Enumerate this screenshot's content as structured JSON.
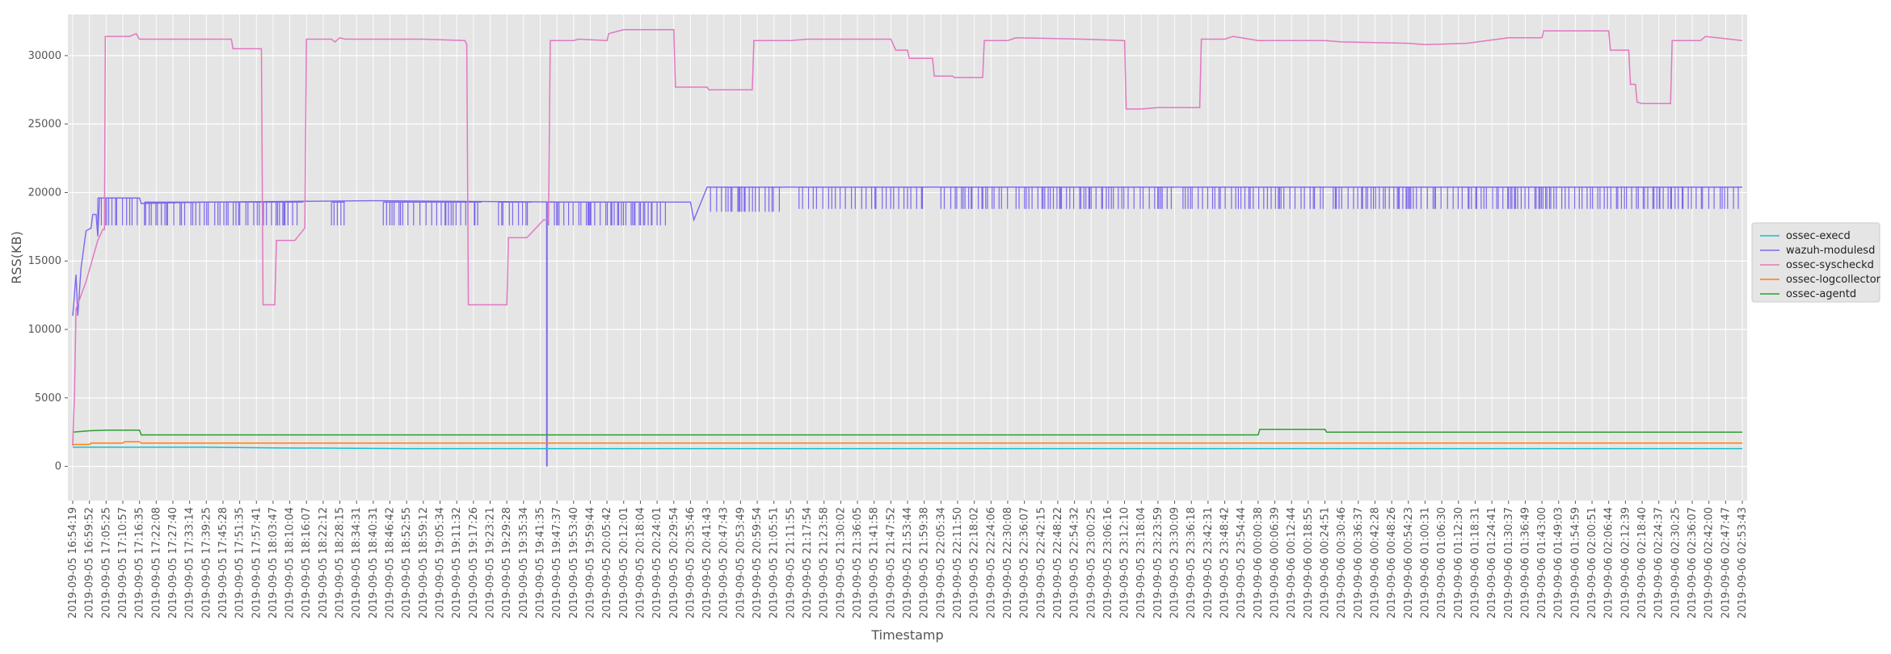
{
  "chart_data": {
    "type": "line",
    "title": "",
    "xlabel": "Timestamp",
    "ylabel": "RSS(KB)",
    "ylim": [
      -2500,
      33000
    ],
    "yticks": [
      0,
      5000,
      10000,
      15000,
      20000,
      25000,
      30000
    ],
    "grid": true,
    "legend_position": "right",
    "x_tick_labels": [
      "2019-09-05 16:54:19",
      "2019-09-05 16:59:52",
      "2019-09-05 17:05:25",
      "2019-09-05 17:10:57",
      "2019-09-05 17:16:35",
      "2019-09-05 17:22:08",
      "2019-09-05 17:27:40",
      "2019-09-05 17:33:14",
      "2019-09-05 17:39:25",
      "2019-09-05 17:45:28",
      "2019-09-05 17:51:35",
      "2019-09-05 17:57:41",
      "2019-09-05 18:03:47",
      "2019-09-05 18:10:04",
      "2019-09-05 18:16:07",
      "2019-09-05 18:22:12",
      "2019-09-05 18:28:15",
      "2019-09-05 18:34:31",
      "2019-09-05 18:40:31",
      "2019-09-05 18:46:42",
      "2019-09-05 18:52:55",
      "2019-09-05 18:59:12",
      "2019-09-05 19:05:34",
      "2019-09-05 19:11:32",
      "2019-09-05 19:17:26",
      "2019-09-05 19:23:21",
      "2019-09-05 19:29:28",
      "2019-09-05 19:35:34",
      "2019-09-05 19:41:35",
      "2019-09-05 19:47:37",
      "2019-09-05 19:53:40",
      "2019-09-05 19:59:44",
      "2019-09-05 20:05:42",
      "2019-09-05 20:12:01",
      "2019-09-05 20:18:04",
      "2019-09-05 20:24:01",
      "2019-09-05 20:29:54",
      "2019-09-05 20:35:46",
      "2019-09-05 20:41:43",
      "2019-09-05 20:47:43",
      "2019-09-05 20:53:49",
      "2019-09-05 20:59:54",
      "2019-09-05 21:05:51",
      "2019-09-05 21:11:55",
      "2019-09-05 21:17:54",
      "2019-09-05 21:23:58",
      "2019-09-05 21:30:02",
      "2019-09-05 21:36:05",
      "2019-09-05 21:41:58",
      "2019-09-05 21:47:52",
      "2019-09-05 21:53:44",
      "2019-09-05 21:59:38",
      "2019-09-05 22:05:34",
      "2019-09-05 22:11:50",
      "2019-09-05 22:18:02",
      "2019-09-05 22:24:06",
      "2019-09-05 22:30:08",
      "2019-09-05 22:36:07",
      "2019-09-05 22:42:15",
      "2019-09-05 22:48:22",
      "2019-09-05 22:54:32",
      "2019-09-05 23:00:25",
      "2019-09-05 23:06:16",
      "2019-09-05 23:12:10",
      "2019-09-05 23:18:04",
      "2019-09-05 23:23:59",
      "2019-09-05 23:30:09",
      "2019-09-05 23:36:18",
      "2019-09-05 23:42:31",
      "2019-09-05 23:48:42",
      "2019-09-05 23:54:44",
      "2019-09-06 00:00:38",
      "2019-09-06 00:06:39",
      "2019-09-06 00:12:44",
      "2019-09-06 00:18:55",
      "2019-09-06 00:24:51",
      "2019-09-06 00:30:46",
      "2019-09-06 00:36:37",
      "2019-09-06 00:42:28",
      "2019-09-06 00:48:26",
      "2019-09-06 00:54:23",
      "2019-09-06 01:00:31",
      "2019-09-06 01:06:30",
      "2019-09-06 01:12:30",
      "2019-09-06 01:18:31",
      "2019-09-06 01:24:41",
      "2019-09-06 01:30:37",
      "2019-09-06 01:36:49",
      "2019-09-06 01:43:00",
      "2019-09-06 01:49:03",
      "2019-09-06 01:54:59",
      "2019-09-06 02:00:51",
      "2019-09-06 02:06:44",
      "2019-09-06 02:12:39",
      "2019-09-06 02:18:40",
      "2019-09-06 02:24:37",
      "2019-09-06 02:30:25",
      "2019-09-06 02:36:07",
      "2019-09-06 02:42:00",
      "2019-09-06 02:47:47",
      "2019-09-06 02:53:43"
    ],
    "series": [
      {
        "name": "ossec-execd",
        "color": "#17becf",
        "points": [
          [
            0,
            1400
          ],
          [
            2,
            1400
          ],
          [
            8,
            1400
          ],
          [
            12,
            1350
          ],
          [
            20,
            1300
          ],
          [
            40,
            1300
          ],
          [
            80,
            1300
          ],
          [
            100,
            1300
          ]
        ]
      },
      {
        "name": "ossec-agentd",
        "color": "#2ca02c",
        "points": [
          [
            0,
            2500
          ],
          [
            1,
            2600
          ],
          [
            2,
            2650
          ],
          [
            4,
            2650
          ],
          [
            4.1,
            2300
          ],
          [
            15,
            2300
          ],
          [
            40,
            2300
          ],
          [
            71,
            2300
          ],
          [
            71.1,
            2700
          ],
          [
            75,
            2700
          ],
          [
            75.1,
            2500
          ],
          [
            100,
            2500
          ]
        ]
      },
      {
        "name": "ossec-logcollector",
        "color": "#ff7f0e",
        "points": [
          [
            0,
            1600
          ],
          [
            1,
            1600
          ],
          [
            1.1,
            1700
          ],
          [
            3,
            1700
          ],
          [
            3.1,
            1800
          ],
          [
            4,
            1800
          ],
          [
            4.1,
            1700
          ],
          [
            12,
            1700
          ],
          [
            20,
            1700
          ],
          [
            40,
            1700
          ],
          [
            60,
            1700
          ],
          [
            80,
            1700
          ],
          [
            100,
            1700
          ]
        ]
      },
      {
        "name": "ossec-syscheckd",
        "color": "#e377c2",
        "points": [
          [
            0,
            1500
          ],
          [
            0.05,
            3500
          ],
          [
            0.1,
            5000
          ],
          [
            0.2,
            11500
          ],
          [
            0.8,
            13500
          ],
          [
            1.5,
            16500
          ],
          [
            1.8,
            17300
          ],
          [
            1.9,
            17300
          ],
          [
            1.95,
            31400
          ],
          [
            3.4,
            31400
          ],
          [
            3.8,
            31600
          ],
          [
            4,
            31200
          ],
          [
            6,
            31200
          ],
          [
            9.5,
            31200
          ],
          [
            9.6,
            30500
          ],
          [
            11.3,
            30500
          ],
          [
            11.4,
            11800
          ],
          [
            12.1,
            11800
          ],
          [
            12.2,
            16500
          ],
          [
            13.3,
            16500
          ],
          [
            13.9,
            17400
          ],
          [
            14,
            31200
          ],
          [
            15.5,
            31200
          ],
          [
            15.7,
            31000
          ],
          [
            16,
            31300
          ],
          [
            16.3,
            31200
          ],
          [
            18,
            31200
          ],
          [
            21,
            31200
          ],
          [
            23.5,
            31100
          ],
          [
            23.6,
            30800
          ],
          [
            23.7,
            11800
          ],
          [
            26,
            11800
          ],
          [
            26.1,
            16700
          ],
          [
            27.2,
            16700
          ],
          [
            28.2,
            18000
          ],
          [
            28.5,
            18000
          ],
          [
            28.6,
            31100
          ],
          [
            30,
            31100
          ],
          [
            30.3,
            31200
          ],
          [
            32,
            31100
          ],
          [
            32.1,
            31600
          ],
          [
            33,
            31900
          ],
          [
            36,
            31900
          ],
          [
            36.1,
            27700
          ],
          [
            38,
            27700
          ],
          [
            38.1,
            27500
          ],
          [
            40.7,
            27500
          ],
          [
            40.8,
            31100
          ],
          [
            43,
            31100
          ],
          [
            44,
            31200
          ],
          [
            49,
            31200
          ],
          [
            49.3,
            30400
          ],
          [
            50,
            30400
          ],
          [
            50.1,
            29800
          ],
          [
            51.5,
            29800
          ],
          [
            51.6,
            28500
          ],
          [
            52.7,
            28500
          ],
          [
            52.8,
            28400
          ],
          [
            54.5,
            28400
          ],
          [
            54.6,
            31100
          ],
          [
            56,
            31100
          ],
          [
            56.5,
            31300
          ],
          [
            60.5,
            31200
          ],
          [
            63,
            31100
          ],
          [
            63.1,
            26100
          ],
          [
            64,
            26100
          ],
          [
            65,
            26200
          ],
          [
            67.5,
            26200
          ],
          [
            67.6,
            31200
          ],
          [
            69,
            31200
          ],
          [
            69.5,
            31400
          ],
          [
            71,
            31100
          ],
          [
            74,
            31100
          ],
          [
            75,
            31100
          ],
          [
            76,
            31000
          ],
          [
            80,
            30900
          ],
          [
            81,
            30800
          ],
          [
            83.5,
            30900
          ],
          [
            86,
            31300
          ],
          [
            88,
            31300
          ],
          [
            88.1,
            31800
          ],
          [
            92,
            31800
          ],
          [
            92.1,
            30400
          ],
          [
            93.2,
            30400
          ],
          [
            93.3,
            27900
          ],
          [
            93.6,
            27900
          ],
          [
            93.7,
            26600
          ],
          [
            94,
            26500
          ],
          [
            95.7,
            26500
          ],
          [
            95.8,
            31100
          ],
          [
            97.5,
            31100
          ],
          [
            97.8,
            31400
          ],
          [
            100,
            31100
          ]
        ]
      }
    ],
    "wazuh_modulesd": {
      "name": "wazuh-modulesd",
      "color": "#7b68ee",
      "points": [
        [
          0,
          11000
        ],
        [
          0.2,
          14000
        ],
        [
          0.3,
          11000
        ],
        [
          0.5,
          14500
        ],
        [
          0.8,
          17200
        ],
        [
          1.1,
          17400
        ],
        [
          1.2,
          18400
        ],
        [
          1.4,
          18400
        ],
        [
          1.5,
          16800
        ],
        [
          1.6,
          19600
        ],
        [
          4,
          19600
        ],
        [
          4.1,
          19200
        ],
        [
          8,
          19300
        ],
        [
          18,
          19400
        ],
        [
          30,
          19300
        ],
        [
          37,
          19300
        ],
        [
          37.2,
          18000
        ],
        [
          38,
          20400
        ],
        [
          100,
          20400
        ]
      ],
      "noise_bands": [
        [
          1.5,
          4.0,
          17600,
          19600
        ],
        [
          4.3,
          13.8,
          17600,
          19300
        ],
        [
          15.5,
          16.3,
          17600,
          19300
        ],
        [
          18.6,
          24.5,
          17600,
          19300
        ],
        [
          25.5,
          27.5,
          17600,
          19300
        ],
        [
          28.5,
          35.5,
          17600,
          19300
        ],
        [
          38.2,
          42.5,
          18600,
          20400
        ],
        [
          43.5,
          51,
          18800,
          20400
        ],
        [
          52,
          56,
          18800,
          20400
        ],
        [
          56.5,
          66,
          18800,
          20400
        ],
        [
          66.5,
          75,
          18800,
          20400
        ],
        [
          75.5,
          80,
          18800,
          20400
        ],
        [
          80,
          100,
          18800,
          20400
        ]
      ],
      "spike": {
        "x": 28.4,
        "low": 0,
        "high": 19300
      }
    }
  },
  "legend": {
    "entries": [
      {
        "label": "ossec-execd",
        "color": "#17becf"
      },
      {
        "label": "wazuh-modulesd",
        "color": "#7b68ee"
      },
      {
        "label": "ossec-syscheckd",
        "color": "#e377c2"
      },
      {
        "label": "ossec-logcollector",
        "color": "#ff7f0e"
      },
      {
        "label": "ossec-agentd",
        "color": "#2ca02c"
      }
    ]
  }
}
